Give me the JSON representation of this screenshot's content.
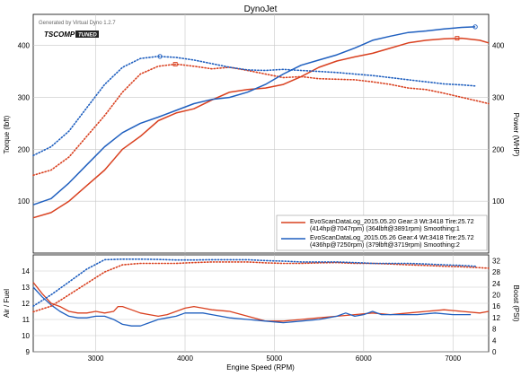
{
  "chart_data": {
    "title": "DynoJet",
    "generator_note": "Generated by Virtual Dyno 1.2.7",
    "logo": {
      "text_main": "TSCOMP",
      "text_badge": "TUNED"
    },
    "xlabel": "Engine Speed (RPM)",
    "colors": {
      "red": "#d9401f",
      "blue": "#1f5fbf",
      "grid": "#c8c8c8"
    },
    "top_panel": {
      "type": "line",
      "ylabel_left": "Torque (lbft)",
      "ylabel_right": "Power (WHP)",
      "xlim": [
        2300,
        7400
      ],
      "ylim": [
        0,
        460
      ],
      "x_ticks": [
        3000,
        4000,
        5000,
        6000,
        7000
      ],
      "y_ticks": [
        100,
        200,
        300,
        400
      ],
      "series": [
        {
          "name": "EvoScanDataLog_2015.05.20 Gear:3 Wt:3418 Tire:25.72 (414hp@7047rpm) (364lbft@3891rpm) Smoothing:1",
          "kind": "power",
          "color": "red",
          "style": "solid",
          "x": [
            2300,
            2500,
            2700,
            2900,
            3100,
            3300,
            3500,
            3700,
            3900,
            4100,
            4300,
            4500,
            4700,
            4900,
            5100,
            5300,
            5500,
            5700,
            5900,
            6100,
            6300,
            6500,
            6700,
            6900,
            7100,
            7300,
            7400
          ],
          "y": [
            68,
            78,
            100,
            130,
            160,
            200,
            225,
            255,
            270,
            278,
            295,
            310,
            315,
            318,
            325,
            340,
            358,
            370,
            378,
            385,
            395,
            405,
            410,
            413,
            414,
            410,
            405
          ],
          "marker": {
            "x": 7047,
            "y": 414
          }
        },
        {
          "name": "EvoScanDataLog_2015.05.20 Gear:3 Wt:3418 Tire:25.72 (414hp@7047rpm) (364lbft@3891rpm) Smoothing:1",
          "kind": "torque",
          "color": "red",
          "style": "dotted",
          "x": [
            2300,
            2500,
            2700,
            2900,
            3100,
            3300,
            3500,
            3700,
            3900,
            4100,
            4300,
            4500,
            4700,
            4900,
            5100,
            5300,
            5500,
            5700,
            5900,
            6100,
            6300,
            6500,
            6700,
            6900,
            7100,
            7300,
            7400
          ],
          "y": [
            150,
            160,
            185,
            225,
            265,
            310,
            345,
            360,
            364,
            360,
            355,
            358,
            352,
            345,
            338,
            340,
            336,
            335,
            334,
            330,
            325,
            318,
            315,
            308,
            300,
            292,
            288
          ],
          "marker": {
            "x": 3891,
            "y": 364
          }
        },
        {
          "name": "EvoScanDataLog_2015.05.26 Gear:4 Wt:3418 Tire:25.72 (436hp@7250rpm) (379lbft@3719rpm) Smoothing:2",
          "kind": "power",
          "color": "blue",
          "style": "solid",
          "x": [
            2300,
            2500,
            2700,
            2900,
            3100,
            3300,
            3500,
            3700,
            3900,
            4100,
            4300,
            4500,
            4700,
            4900,
            5100,
            5300,
            5500,
            5700,
            5900,
            6100,
            6300,
            6500,
            6700,
            6900,
            7100,
            7250
          ],
          "y": [
            93,
            105,
            135,
            170,
            205,
            232,
            250,
            262,
            275,
            288,
            296,
            300,
            310,
            325,
            345,
            362,
            372,
            382,
            395,
            410,
            418,
            425,
            428,
            432,
            435,
            436
          ],
          "marker": {
            "x": 7250,
            "y": 436
          }
        },
        {
          "name": "EvoScanDataLog_2015.05.26 Gear:4 Wt:3418 Tire:25.72 (436hp@7250rpm) (379lbft@3719rpm) Smoothing:2",
          "kind": "torque",
          "color": "blue",
          "style": "dotted",
          "x": [
            2300,
            2500,
            2700,
            2900,
            3100,
            3300,
            3500,
            3700,
            3900,
            4100,
            4300,
            4500,
            4700,
            4900,
            5100,
            5300,
            5500,
            5700,
            5900,
            6100,
            6300,
            6500,
            6700,
            6900,
            7100,
            7250
          ],
          "y": [
            188,
            205,
            235,
            280,
            325,
            358,
            375,
            379,
            377,
            372,
            365,
            358,
            353,
            352,
            354,
            352,
            350,
            348,
            345,
            342,
            338,
            334,
            330,
            326,
            324,
            322
          ],
          "marker": {
            "x": 3719,
            "y": 379
          }
        }
      ],
      "legend": {
        "position": "bottom-right",
        "entries": [
          {
            "color": "red",
            "line1": "EvoScanDataLog_2015.05.20 Gear:3 Wt:3418 Tire:25.72",
            "line2": "(414hp@7047rpm) (364lbft@3891rpm) Smoothing:1"
          },
          {
            "color": "blue",
            "line1": "EvoScanDataLog_2015.05.26 Gear:4 Wt:3418 Tire:25.72",
            "line2": "(436hp@7250rpm) (379lbft@3719rpm) Smoothing:2"
          }
        ]
      }
    },
    "bottom_panel": {
      "type": "line",
      "ylabel_left": "Air / Fuel",
      "ylabel_right": "Boost (PSI)",
      "xlim": [
        2300,
        7400
      ],
      "ylim_left": [
        9,
        15
      ],
      "ylim_right": [
        0,
        34
      ],
      "x_ticks": [
        3000,
        4000,
        5000,
        6000,
        7000
      ],
      "y_ticks_left": [
        9,
        10,
        11,
        12,
        13,
        14
      ],
      "y_ticks_right": [
        0,
        4,
        8,
        12,
        16,
        20,
        24,
        28,
        32
      ],
      "series": [
        {
          "kind": "afr",
          "color": "red",
          "style": "solid",
          "x": [
            2300,
            2400,
            2500,
            2600,
            2700,
            2800,
            2900,
            3000,
            3100,
            3200,
            3250,
            3300,
            3400,
            3500,
            3600,
            3700,
            3800,
            3900,
            4000,
            4100,
            4200,
            4300,
            4500,
            4700,
            4900,
            5100,
            5300,
            5500,
            5700,
            5900,
            6100,
            6300,
            6500,
            6700,
            6900,
            7100,
            7300,
            7400
          ],
          "y": [
            13.3,
            12.6,
            12.0,
            11.8,
            11.5,
            11.4,
            11.4,
            11.5,
            11.4,
            11.5,
            11.8,
            11.8,
            11.6,
            11.4,
            11.3,
            11.2,
            11.3,
            11.5,
            11.7,
            11.8,
            11.7,
            11.6,
            11.5,
            11.2,
            10.9,
            10.9,
            11.0,
            11.1,
            11.2,
            11.3,
            11.4,
            11.3,
            11.4,
            11.5,
            11.6,
            11.5,
            11.4,
            11.5
          ]
        },
        {
          "kind": "afr",
          "color": "blue",
          "style": "solid",
          "x": [
            2300,
            2400,
            2500,
            2600,
            2700,
            2800,
            2900,
            3000,
            3100,
            3200,
            3300,
            3400,
            3500,
            3600,
            3700,
            3800,
            3900,
            4000,
            4100,
            4200,
            4300,
            4500,
            4700,
            4900,
            5100,
            5300,
            5500,
            5700,
            5800,
            5900,
            6000,
            6100,
            6200,
            6400,
            6600,
            6800,
            7000,
            7200
          ],
          "y": [
            13.0,
            12.4,
            11.9,
            11.5,
            11.2,
            11.1,
            11.1,
            11.2,
            11.2,
            11.0,
            10.7,
            10.6,
            10.6,
            10.8,
            11.0,
            11.1,
            11.2,
            11.4,
            11.4,
            11.4,
            11.3,
            11.1,
            11.0,
            10.9,
            10.8,
            10.9,
            11.0,
            11.2,
            11.4,
            11.2,
            11.3,
            11.5,
            11.3,
            11.3,
            11.3,
            11.4,
            11.3,
            11.3
          ]
        },
        {
          "kind": "boost",
          "color": "red",
          "style": "dotted",
          "x": [
            2300,
            2500,
            2700,
            2900,
            3100,
            3300,
            3500,
            3700,
            3900,
            4100,
            4300,
            4500,
            4700,
            4900,
            5100,
            5300,
            5500,
            5700,
            5900,
            6100,
            6300,
            6500,
            6700,
            6900,
            7100,
            7300,
            7400
          ],
          "y": [
            14,
            16,
            20,
            24,
            28,
            30.5,
            31,
            31,
            31,
            31.3,
            31.5,
            31.5,
            31.5,
            31.2,
            31,
            31,
            31.2,
            31.3,
            31,
            31,
            30.8,
            30.5,
            30.3,
            30,
            29.8,
            29.5,
            29.3
          ]
        },
        {
          "kind": "boost",
          "color": "blue",
          "style": "dotted",
          "x": [
            2300,
            2500,
            2700,
            2900,
            3100,
            3300,
            3500,
            3700,
            3900,
            4100,
            4300,
            4500,
            4700,
            4900,
            5100,
            5300,
            5500,
            5700,
            5900,
            6100,
            6300,
            6500,
            6700,
            6900,
            7100,
            7250
          ],
          "y": [
            16,
            20,
            24.5,
            29,
            32.3,
            32.5,
            32.5,
            32.4,
            32.2,
            32.2,
            32.3,
            32.3,
            32.3,
            32,
            31.8,
            31.5,
            31.5,
            31.5,
            31.3,
            31,
            31,
            31,
            30.8,
            30.5,
            30.3,
            30
          ]
        }
      ]
    }
  }
}
